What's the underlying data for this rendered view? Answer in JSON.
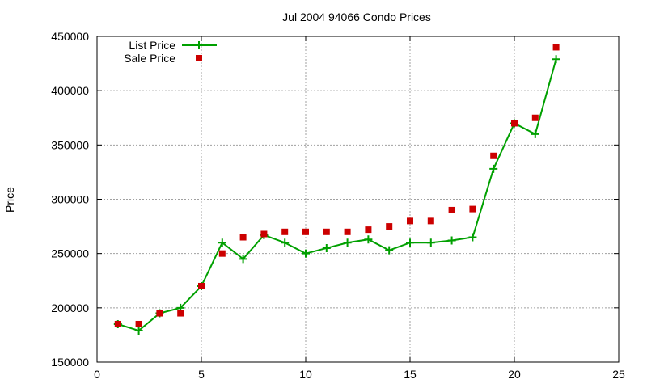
{
  "chart_data": {
    "type": "line",
    "title": "Jul 2004 94066 Condo Prices",
    "xlabel": "",
    "ylabel": "Price",
    "xlim": [
      0,
      25
    ],
    "ylim": [
      150000,
      450000
    ],
    "x_ticks": [
      "0",
      "5",
      "10",
      "15",
      "20",
      "25"
    ],
    "y_ticks": [
      "150000",
      "200000",
      "250000",
      "300000",
      "350000",
      "400000",
      "450000"
    ],
    "grid": true,
    "legend_position": "top-left",
    "x": [
      1,
      2,
      3,
      4,
      5,
      6,
      7,
      8,
      9,
      10,
      11,
      12,
      13,
      14,
      15,
      16,
      17,
      18,
      19,
      20,
      21,
      22
    ],
    "series": [
      {
        "name": "List Price",
        "style": "line-with-plus-markers",
        "color": "#00a000",
        "values": [
          185000,
          179000,
          195000,
          200000,
          220000,
          260000,
          245000,
          267000,
          260000,
          250000,
          255000,
          260000,
          263000,
          253000,
          260000,
          260000,
          262000,
          265000,
          328000,
          370000,
          360000,
          429000
        ]
      },
      {
        "name": "Sale Price",
        "style": "square-markers",
        "color": "#cc0000",
        "values": [
          185000,
          185000,
          195000,
          195000,
          220000,
          250000,
          265000,
          268000,
          270000,
          270000,
          270000,
          270000,
          272000,
          275000,
          280000,
          280000,
          290000,
          291000,
          340000,
          370000,
          375000,
          440000
        ]
      }
    ]
  }
}
